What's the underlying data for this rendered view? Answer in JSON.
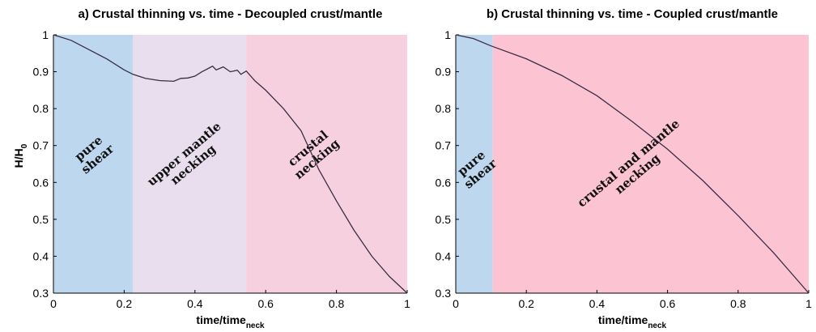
{
  "chart_data": [
    {
      "type": "line",
      "title": "a) Crustal thinning vs. time - Decoupled crust/mantle",
      "xlabel": "time/time",
      "xlabel_sub": "neck",
      "ylabel": "H/H",
      "ylabel_sub": "0",
      "xlim": [
        0,
        1
      ],
      "ylim": [
        0.3,
        1.0
      ],
      "xticks": [
        "0",
        "0.2",
        "0.4",
        "0.6",
        "0.8",
        "1"
      ],
      "yticks": [
        "0.3",
        "0.4",
        "0.5",
        "0.6",
        "0.7",
        "0.8",
        "0.9",
        "1"
      ],
      "line_color": "#3a2e45",
      "regions": [
        {
          "x0": 0.0,
          "x1": 0.225,
          "color": "#bdd8ee",
          "label": [
            "pure",
            "shear"
          ],
          "label_x": 0.11,
          "label_y": 0.68
        },
        {
          "x0": 0.225,
          "x1": 0.545,
          "color": "#e8deee",
          "label": [
            "upper mantle",
            "necking"
          ],
          "label_x": 0.38,
          "label_y": 0.665
        },
        {
          "x0": 0.545,
          "x1": 1.0,
          "color": "#f7d0df",
          "label": [
            "crustal",
            "necking"
          ],
          "label_x": 0.73,
          "label_y": 0.68
        }
      ],
      "x": [
        0,
        0.05,
        0.1,
        0.15,
        0.2,
        0.225,
        0.26,
        0.3,
        0.34,
        0.36,
        0.38,
        0.4,
        0.42,
        0.44,
        0.45,
        0.46,
        0.48,
        0.5,
        0.52,
        0.53,
        0.545,
        0.57,
        0.6,
        0.65,
        0.7,
        0.75,
        0.8,
        0.85,
        0.9,
        0.95,
        1.0
      ],
      "y": [
        1.0,
        0.985,
        0.96,
        0.935,
        0.905,
        0.893,
        0.882,
        0.876,
        0.874,
        0.882,
        0.883,
        0.888,
        0.9,
        0.91,
        0.915,
        0.905,
        0.913,
        0.9,
        0.904,
        0.893,
        0.902,
        0.875,
        0.85,
        0.8,
        0.74,
        0.635,
        0.55,
        0.47,
        0.4,
        0.345,
        0.3
      ]
    },
    {
      "type": "line",
      "title": "b) Crustal thinning vs. time - Coupled crust/mantle",
      "xlabel": "time/time",
      "xlabel_sub": "neck",
      "ylabel": "",
      "ylabel_sub": "",
      "xlim": [
        0,
        1
      ],
      "ylim": [
        0.3,
        1.0
      ],
      "xticks": [
        "0",
        "0.2",
        "0.4",
        "0.6",
        "0.8",
        "1"
      ],
      "yticks": [
        "0.3",
        "0.4",
        "0.5",
        "0.6",
        "0.7",
        "0.8",
        "0.9",
        "1"
      ],
      "line_color": "#3a2e45",
      "regions": [
        {
          "x0": 0.0,
          "x1": 0.105,
          "color": "#bdd8ee",
          "label": [
            "pure",
            "shear"
          ],
          "label_x": 0.055,
          "label_y": 0.64
        },
        {
          "x0": 0.105,
          "x1": 1.0,
          "color": "#fcc3d3",
          "label": [
            "crustal and mantle",
            "necking"
          ],
          "label_x": 0.5,
          "label_y": 0.64
        }
      ],
      "x": [
        0,
        0.05,
        0.1,
        0.2,
        0.3,
        0.4,
        0.5,
        0.6,
        0.7,
        0.8,
        0.9,
        1.0
      ],
      "y": [
        1.0,
        0.99,
        0.97,
        0.935,
        0.89,
        0.835,
        0.765,
        0.69,
        0.605,
        0.51,
        0.41,
        0.3
      ]
    }
  ]
}
